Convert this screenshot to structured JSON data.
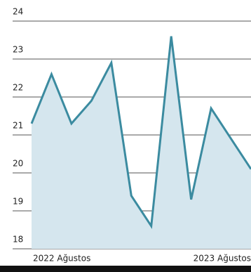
{
  "chart_data": {
    "type": "area",
    "categories": [
      "2022 Ağustos",
      null,
      null,
      null,
      null,
      null,
      null,
      null,
      null,
      null,
      null,
      "2023 Ağustos"
    ],
    "series": [
      {
        "name": null,
        "color": "#3b8ba0",
        "fill": "#d5e6ee",
        "values": [
          21.3,
          22.6,
          21.3,
          21.9,
          22.9,
          19.4,
          18.6,
          23.6,
          19.3,
          21.7,
          20.9,
          20.1
        ]
      }
    ],
    "ylim": [
      18,
      24
    ],
    "yticks": [
      18,
      19,
      20,
      21,
      22,
      23,
      24
    ],
    "grid": true
  }
}
